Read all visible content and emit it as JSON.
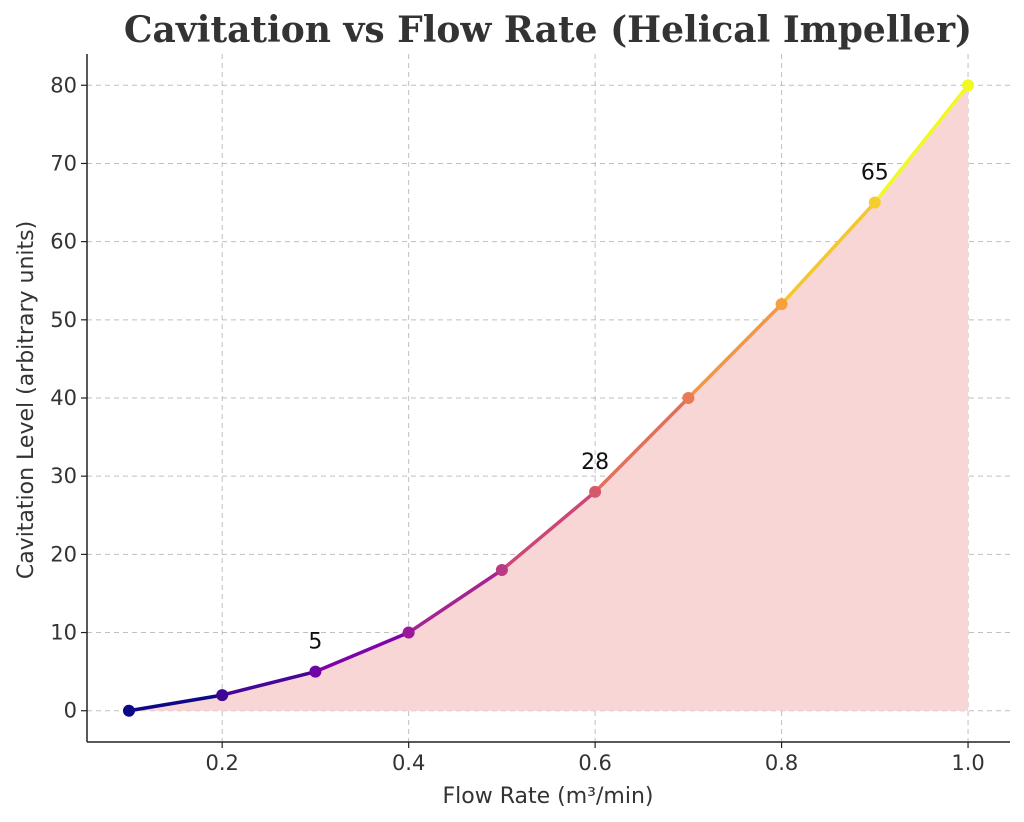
{
  "chart_data": {
    "type": "line",
    "title": "Cavitation vs Flow Rate (Helical Impeller)",
    "xlabel": "Flow Rate (m³/min)",
    "ylabel": "Cavitation Level (arbitrary units)",
    "x": [
      0.1,
      0.2,
      0.3,
      0.4,
      0.5,
      0.6,
      0.7,
      0.8,
      0.9,
      1.0
    ],
    "series": [
      {
        "values": [
          0,
          2,
          5,
          10,
          18,
          28,
          40,
          52,
          65,
          80
        ]
      }
    ],
    "xlim": [
      0.055,
      1.045
    ],
    "ylim": [
      -4,
      84
    ],
    "xticks": [
      0.2,
      0.4,
      0.6,
      0.8,
      1.0
    ],
    "xtick_labels": [
      "0.2",
      "0.4",
      "0.6",
      "0.8",
      "1.0"
    ],
    "yticks": [
      0,
      10,
      20,
      30,
      40,
      50,
      60,
      70,
      80
    ],
    "ytick_labels": [
      "0",
      "10",
      "20",
      "30",
      "40",
      "50",
      "60",
      "70",
      "80"
    ],
    "grid": true,
    "fill_under": true,
    "fill_color": "#f8d6d6",
    "colormap": "plasma",
    "annotations": [
      {
        "x": 0.3,
        "y": 5,
        "text": "5"
      },
      {
        "x": 0.6,
        "y": 28,
        "text": "28"
      },
      {
        "x": 0.9,
        "y": 65,
        "text": "65"
      }
    ]
  }
}
